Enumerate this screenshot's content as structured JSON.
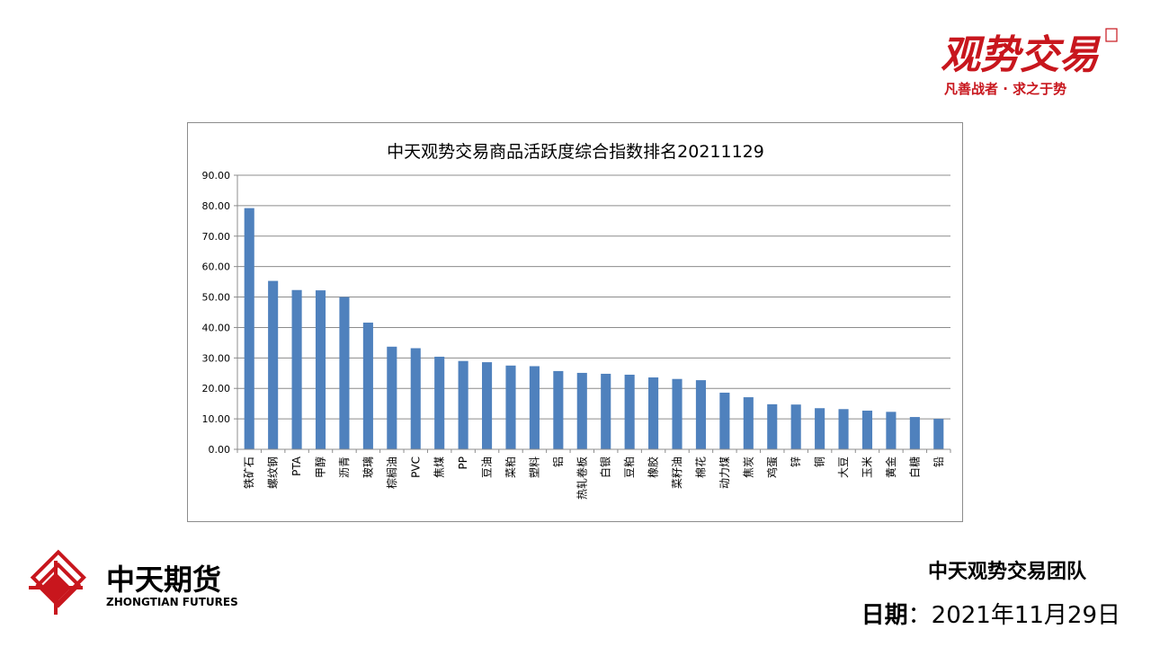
{
  "brand_top": {
    "name": "观势交易",
    "slogan": "凡善战者 · 求之于势",
    "color": "#c8161d"
  },
  "brand_bottom": {
    "name_cn": "中天期货",
    "name_en": "ZHONGTIAN FUTURES",
    "color": "#c8161d"
  },
  "footer": {
    "team": "中天观势交易团队",
    "date_label": "日期",
    "date_value": "2021年11月29日"
  },
  "chart_data": {
    "type": "bar",
    "title": "中天观势交易商品活跃度综合指数排名20211129",
    "xlabel": "",
    "ylabel": "",
    "ylim": [
      0,
      90
    ],
    "ytick_labels": [
      "0.00",
      "10.00",
      "20.00",
      "30.00",
      "40.00",
      "50.00",
      "60.00",
      "70.00",
      "80.00",
      "90.00"
    ],
    "grid": true,
    "bar_color": "#4f81bd",
    "categories": [
      "铁矿石",
      "螺纹钢",
      "PTA",
      "甲醇",
      "沥青",
      "玻璃",
      "棕榈油",
      "PVC",
      "焦煤",
      "PP",
      "豆油",
      "菜粕",
      "塑料",
      "铝",
      "热轧卷板",
      "白银",
      "豆粕",
      "橡胶",
      "菜籽油",
      "棉花",
      "动力煤",
      "焦炭",
      "鸡蛋",
      "锌",
      "铜",
      "大豆",
      "玉米",
      "黄金",
      "白糖",
      "铅"
    ],
    "values": [
      79.2,
      55.3,
      52.3,
      52.2,
      50.0,
      41.6,
      33.7,
      33.2,
      30.4,
      29.0,
      28.6,
      27.5,
      27.3,
      25.7,
      25.1,
      24.8,
      24.5,
      23.6,
      23.1,
      22.7,
      18.6,
      17.1,
      14.8,
      14.7,
      13.5,
      13.2,
      12.7,
      12.3,
      10.6,
      10.0
    ]
  }
}
